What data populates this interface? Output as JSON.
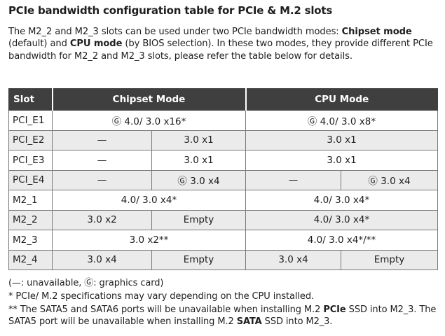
{
  "heading": "PCIe bandwidth configuration table for PCIe & M.2 slots",
  "intro": {
    "part1": "The M2_2 and M2_3 slots can be used under two PCIe bandwidth modes: ",
    "chipset_bold": "Chipset mode",
    "part2": " (default) and ",
    "cpu_bold": "CPU mode",
    "part3": " (by BIOS selection). In these two modes, they provide different PCIe bandwidth for M2_2 and M2_3 slots, please refer the table below for details."
  },
  "table": {
    "headers": {
      "slot": "Slot",
      "chipset": "Chipset Mode",
      "cpu": "CPU Mode"
    },
    "rows": [
      {
        "slot": "PCI_E1",
        "chipset": "Ⓖ 4.0/ 3.0 x16*",
        "cpu": "Ⓖ 4.0/ 3.0 x8*"
      },
      {
        "slot": "PCI_E2",
        "chipset_a": "—",
        "chipset_b": "3.0 x1",
        "cpu": "3.0 x1"
      },
      {
        "slot": "PCI_E3",
        "chipset_a": "—",
        "chipset_b": "3.0 x1",
        "cpu": "3.0 x1"
      },
      {
        "slot": "PCI_E4",
        "chipset_a": "—",
        "chipset_b": "Ⓖ 3.0 x4",
        "cpu_a": "—",
        "cpu_b": "Ⓖ 3.0 x4"
      },
      {
        "slot": "M2_1",
        "chipset": "4.0/ 3.0 x4*",
        "cpu": "4.0/ 3.0 x4*"
      },
      {
        "slot": "M2_2",
        "chipset_a": "3.0 x2",
        "chipset_b": "Empty",
        "cpu": "4.0/ 3.0 x4*"
      },
      {
        "slot": "M2_3",
        "chipset": "3.0 x2**",
        "cpu": "4.0/ 3.0 x4*/**"
      },
      {
        "slot": "M2_4",
        "chipset_a": "3.0 x4",
        "chipset_b": "Empty",
        "cpu_a": "3.0 x4",
        "cpu_b": "Empty"
      }
    ]
  },
  "notes": {
    "legend": "(—: unavailable, Ⓖ: graphics card)",
    "note1": "* PCIe/ M.2 specifications may vary depending on the CPU installed.",
    "note2_part1": "** The SATA5 and SATA6 ports will be unavailable when installing M.2 ",
    "note2_bold1": "PCIe",
    "note2_part2": " SSD into M2_3. The SATA5 port will be unavailable when installing M.2 ",
    "note2_bold2": "SATA",
    "note2_part3": " SSD into M2_3."
  }
}
